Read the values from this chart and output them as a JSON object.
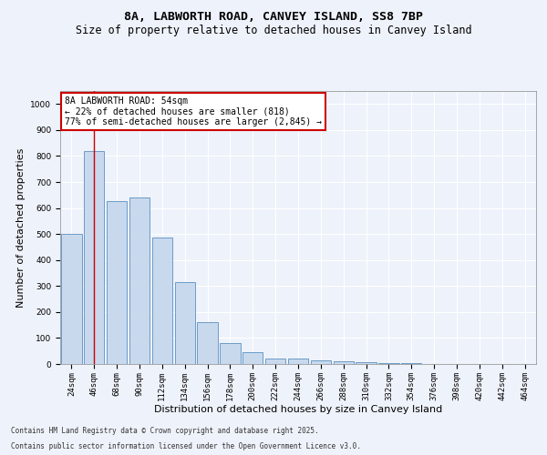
{
  "title": "8A, LABWORTH ROAD, CANVEY ISLAND, SS8 7BP",
  "subtitle": "Size of property relative to detached houses in Canvey Island",
  "xlabel": "Distribution of detached houses by size in Canvey Island",
  "ylabel": "Number of detached properties",
  "bar_color": "#c8d9ee",
  "bar_edge_color": "#5a8fc0",
  "categories": [
    "24sqm",
    "46sqm",
    "68sqm",
    "90sqm",
    "112sqm",
    "134sqm",
    "156sqm",
    "178sqm",
    "200sqm",
    "222sqm",
    "244sqm",
    "266sqm",
    "288sqm",
    "310sqm",
    "332sqm",
    "354sqm",
    "376sqm",
    "398sqm",
    "420sqm",
    "442sqm",
    "464sqm"
  ],
  "values": [
    500,
    820,
    625,
    640,
    485,
    315,
    160,
    80,
    45,
    22,
    20,
    15,
    10,
    6,
    3,
    2,
    1,
    1,
    0,
    0,
    0
  ],
  "ylim": [
    0,
    1050
  ],
  "yticks": [
    0,
    100,
    200,
    300,
    400,
    500,
    600,
    700,
    800,
    900,
    1000
  ],
  "property_line_x": 1.0,
  "annotation_text": "8A LABWORTH ROAD: 54sqm\n← 22% of detached houses are smaller (818)\n77% of semi-detached houses are larger (2,845) →",
  "annotation_box_color": "#ffffff",
  "annotation_box_edge": "#cc0000",
  "footer1": "Contains HM Land Registry data © Crown copyright and database right 2025.",
  "footer2": "Contains public sector information licensed under the Open Government Licence v3.0.",
  "background_color": "#eef2fa",
  "grid_color": "#ffffff",
  "red_line_color": "#cc0000",
  "title_fontsize": 9.5,
  "subtitle_fontsize": 8.5,
  "tick_fontsize": 6.5,
  "ylabel_fontsize": 8,
  "xlabel_fontsize": 8,
  "annotation_fontsize": 7,
  "footer_fontsize": 5.5
}
